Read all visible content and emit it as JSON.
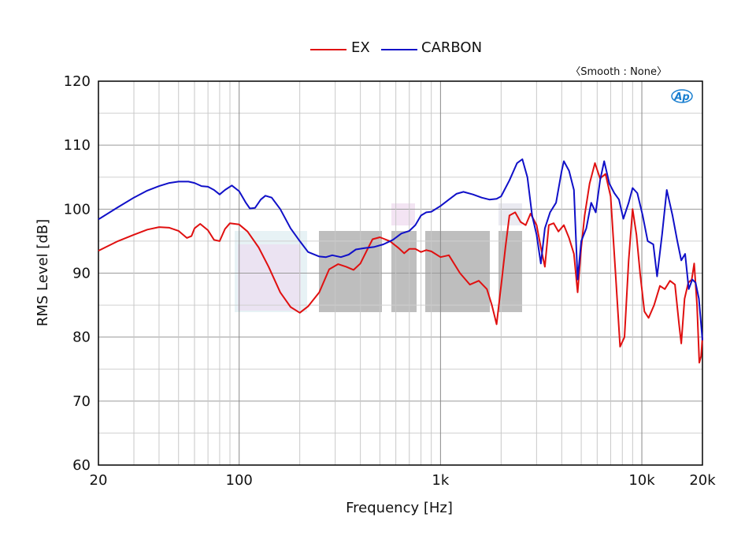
{
  "chart_data": {
    "type": "line",
    "title": "",
    "xlabel": "Frequency [Hz]",
    "ylabel": "RMS Level [dB]",
    "x_scale": "log",
    "xlim": [
      20,
      20000
    ],
    "ylim": [
      60,
      120
    ],
    "x_ticks": [
      {
        "value": 20,
        "label": "20"
      },
      {
        "value": 100,
        "label": "100"
      },
      {
        "value": 1000,
        "label": "1k"
      },
      {
        "value": 10000,
        "label": "10k"
      },
      {
        "value": 20000,
        "label": "20k"
      }
    ],
    "y_ticks": [
      60,
      70,
      80,
      90,
      100,
      110,
      120
    ],
    "grid": true,
    "legend_position": "top-center",
    "annotation": "〈Smooth : None〉",
    "logo_text": "Ap",
    "series": [
      {
        "name": "EX",
        "color": "#e01010",
        "points": [
          [
            20,
            93.5
          ],
          [
            25,
            95
          ],
          [
            30,
            96
          ],
          [
            35,
            96.8
          ],
          [
            40,
            97.2
          ],
          [
            45,
            97.1
          ],
          [
            50,
            96.6
          ],
          [
            55,
            95.5
          ],
          [
            58,
            95.8
          ],
          [
            60,
            97
          ],
          [
            64,
            97.7
          ],
          [
            70,
            96.7
          ],
          [
            75,
            95.2
          ],
          [
            80,
            95
          ],
          [
            85,
            96.9
          ],
          [
            90,
            97.8
          ],
          [
            100,
            97.6
          ],
          [
            110,
            96.5
          ],
          [
            125,
            94
          ],
          [
            140,
            91
          ],
          [
            160,
            87
          ],
          [
            180,
            84.7
          ],
          [
            200,
            83.8
          ],
          [
            220,
            84.8
          ],
          [
            250,
            87
          ],
          [
            280,
            90.6
          ],
          [
            310,
            91.4
          ],
          [
            340,
            91
          ],
          [
            370,
            90.5
          ],
          [
            400,
            91.5
          ],
          [
            430,
            93.5
          ],
          [
            460,
            95.3
          ],
          [
            500,
            95.6
          ],
          [
            560,
            95
          ],
          [
            620,
            93.9
          ],
          [
            660,
            93.1
          ],
          [
            700,
            93.8
          ],
          [
            750,
            93.8
          ],
          [
            800,
            93.3
          ],
          [
            850,
            93.6
          ],
          [
            900,
            93.4
          ],
          [
            1000,
            92.5
          ],
          [
            1100,
            92.8
          ],
          [
            1250,
            90
          ],
          [
            1400,
            88.2
          ],
          [
            1550,
            88.8
          ],
          [
            1700,
            87.5
          ],
          [
            1800,
            85
          ],
          [
            1900,
            82
          ],
          [
            2000,
            88
          ],
          [
            2100,
            94
          ],
          [
            2200,
            99
          ],
          [
            2350,
            99.5
          ],
          [
            2500,
            98
          ],
          [
            2650,
            97.5
          ],
          [
            2800,
            99.3
          ],
          [
            3000,
            97.5
          ],
          [
            3150,
            94
          ],
          [
            3300,
            91
          ],
          [
            3450,
            97.5
          ],
          [
            3650,
            97.8
          ],
          [
            3850,
            96.5
          ],
          [
            4100,
            97.5
          ],
          [
            4350,
            95.5
          ],
          [
            4600,
            93
          ],
          [
            4800,
            87
          ],
          [
            5000,
            94
          ],
          [
            5200,
            99
          ],
          [
            5500,
            104
          ],
          [
            5850,
            107.2
          ],
          [
            6200,
            104.8
          ],
          [
            6600,
            105.5
          ],
          [
            7000,
            102
          ],
          [
            7400,
            90
          ],
          [
            7800,
            78.5
          ],
          [
            8200,
            80
          ],
          [
            8600,
            92
          ],
          [
            9000,
            100
          ],
          [
            9400,
            96
          ],
          [
            9800,
            90
          ],
          [
            10300,
            84
          ],
          [
            10800,
            83
          ],
          [
            11500,
            85
          ],
          [
            12300,
            88
          ],
          [
            13000,
            87.5
          ],
          [
            13800,
            88.8
          ],
          [
            14600,
            88.2
          ],
          [
            15300,
            82
          ],
          [
            15700,
            79
          ],
          [
            16300,
            86
          ],
          [
            17000,
            88.5
          ],
          [
            17700,
            89
          ],
          [
            18200,
            91.5
          ],
          [
            18800,
            85
          ],
          [
            19300,
            76
          ],
          [
            19700,
            77
          ],
          [
            20000,
            80
          ]
        ]
      },
      {
        "name": "CARBON",
        "color": "#1010c8",
        "points": [
          [
            20,
            98.4
          ],
          [
            25,
            100.3
          ],
          [
            30,
            101.8
          ],
          [
            35,
            102.9
          ],
          [
            40,
            103.6
          ],
          [
            45,
            104.1
          ],
          [
            50,
            104.3
          ],
          [
            56,
            104.3
          ],
          [
            60,
            104.1
          ],
          [
            65,
            103.6
          ],
          [
            70,
            103.5
          ],
          [
            75,
            103
          ],
          [
            80,
            102.3
          ],
          [
            85,
            103
          ],
          [
            92,
            103.7
          ],
          [
            100,
            102.8
          ],
          [
            108,
            101
          ],
          [
            113,
            100.1
          ],
          [
            120,
            100.2
          ],
          [
            128,
            101.5
          ],
          [
            135,
            102.1
          ],
          [
            145,
            101.8
          ],
          [
            160,
            100
          ],
          [
            180,
            97
          ],
          [
            200,
            95
          ],
          [
            220,
            93.3
          ],
          [
            250,
            92.6
          ],
          [
            270,
            92.5
          ],
          [
            290,
            92.8
          ],
          [
            320,
            92.5
          ],
          [
            350,
            92.9
          ],
          [
            380,
            93.7
          ],
          [
            420,
            93.9
          ],
          [
            470,
            94.1
          ],
          [
            520,
            94.5
          ],
          [
            580,
            95.2
          ],
          [
            640,
            96.2
          ],
          [
            700,
            96.6
          ],
          [
            750,
            97.5
          ],
          [
            800,
            99
          ],
          [
            850,
            99.5
          ],
          [
            900,
            99.6
          ],
          [
            1000,
            100.5
          ],
          [
            1100,
            101.5
          ],
          [
            1200,
            102.4
          ],
          [
            1300,
            102.7
          ],
          [
            1450,
            102.3
          ],
          [
            1600,
            101.8
          ],
          [
            1750,
            101.5
          ],
          [
            1900,
            101.6
          ],
          [
            2000,
            102
          ],
          [
            2200,
            104.5
          ],
          [
            2400,
            107.2
          ],
          [
            2550,
            107.8
          ],
          [
            2700,
            105
          ],
          [
            2850,
            99
          ],
          [
            3000,
            96
          ],
          [
            3150,
            91.5
          ],
          [
            3300,
            97
          ],
          [
            3500,
            99.5
          ],
          [
            3750,
            101
          ],
          [
            4000,
            106
          ],
          [
            4100,
            107.5
          ],
          [
            4350,
            106
          ],
          [
            4600,
            103
          ],
          [
            4800,
            89
          ],
          [
            5000,
            95
          ],
          [
            5300,
            97
          ],
          [
            5600,
            101
          ],
          [
            5900,
            99.5
          ],
          [
            6200,
            104.5
          ],
          [
            6500,
            107.5
          ],
          [
            6900,
            104
          ],
          [
            7300,
            102.5
          ],
          [
            7700,
            101.5
          ],
          [
            8100,
            98.5
          ],
          [
            8600,
            101
          ],
          [
            9000,
            103.3
          ],
          [
            9500,
            102.5
          ],
          [
            10100,
            99
          ],
          [
            10700,
            95
          ],
          [
            11400,
            94.5
          ],
          [
            11900,
            89.5
          ],
          [
            12600,
            96
          ],
          [
            13300,
            103
          ],
          [
            14200,
            99
          ],
          [
            15000,
            95
          ],
          [
            15700,
            92
          ],
          [
            16400,
            93
          ],
          [
            17100,
            87.5
          ],
          [
            17800,
            89
          ],
          [
            18500,
            88.5
          ],
          [
            19200,
            86
          ],
          [
            20000,
            79.5
          ]
        ]
      }
    ]
  }
}
